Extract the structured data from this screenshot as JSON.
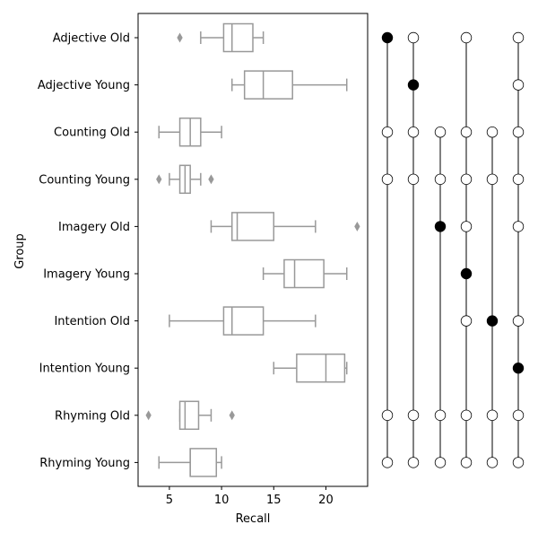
{
  "chart_data": {
    "type": "boxplot",
    "xlabel": "Recall",
    "ylabel": "Group",
    "xlim": [
      2.0,
      24.0
    ],
    "xticks": [
      5,
      10,
      15,
      20
    ],
    "categories": [
      "Adjective Old",
      "Adjective Young",
      "Counting Old",
      "Counting Young",
      "Imagery Old",
      "Imagery Young",
      "Intention Old",
      "Intention Young",
      "Rhyming Old",
      "Rhyming Young"
    ],
    "boxes": [
      {
        "whisker_low": 8,
        "q1": 10.2,
        "median": 11,
        "q3": 13,
        "whisker_high": 14,
        "outliers": [
          6
        ]
      },
      {
        "whisker_low": 11,
        "q1": 12.2,
        "median": 14,
        "q3": 16.8,
        "whisker_high": 22,
        "outliers": []
      },
      {
        "whisker_low": 4,
        "q1": 6,
        "median": 7,
        "q3": 8,
        "whisker_high": 10,
        "outliers": []
      },
      {
        "whisker_low": 5,
        "q1": 6,
        "median": 6.5,
        "q3": 7,
        "whisker_high": 8,
        "outliers": [
          4,
          9
        ]
      },
      {
        "whisker_low": 9,
        "q1": 11,
        "median": 11.5,
        "q3": 15,
        "whisker_high": 19,
        "outliers": [
          23
        ]
      },
      {
        "whisker_low": 14,
        "q1": 16,
        "median": 17,
        "q3": 19.8,
        "whisker_high": 22,
        "outliers": []
      },
      {
        "whisker_low": 5,
        "q1": 10.2,
        "median": 11,
        "q3": 14,
        "whisker_high": 19,
        "outliers": []
      },
      {
        "whisker_low": 15,
        "q1": 17.2,
        "median": 20,
        "q3": 21.8,
        "whisker_high": 22,
        "outliers": []
      },
      {
        "whisker_low": 6,
        "q1": 6,
        "median": 6.5,
        "q3": 7.8,
        "whisker_high": 9,
        "outliers": [
          3,
          11
        ]
      },
      {
        "whisker_low": 4,
        "q1": 7,
        "median": 7,
        "q3": 9.5,
        "whisker_high": 10,
        "outliers": []
      }
    ],
    "comparison_panel": {
      "type": "significance-dots",
      "columns": [
        {
          "control": 0,
          "compared": [
            0,
            2,
            3,
            8,
            9
          ]
        },
        {
          "control": 1,
          "compared": [
            0,
            1,
            2,
            3,
            8,
            9
          ]
        },
        {
          "control": 4,
          "compared": [
            2,
            3,
            4,
            8,
            9
          ]
        },
        {
          "control": 5,
          "compared": [
            0,
            2,
            3,
            4,
            5,
            6,
            8,
            9
          ]
        },
        {
          "control": 6,
          "compared": [
            2,
            3,
            6,
            8,
            9
          ]
        },
        {
          "control": 7,
          "compared": [
            0,
            1,
            2,
            3,
            4,
            6,
            7,
            8,
            9
          ]
        }
      ]
    },
    "colors": {
      "box": "#999999",
      "filled_dot": "#000000",
      "open_dot": "#ffffff"
    }
  }
}
